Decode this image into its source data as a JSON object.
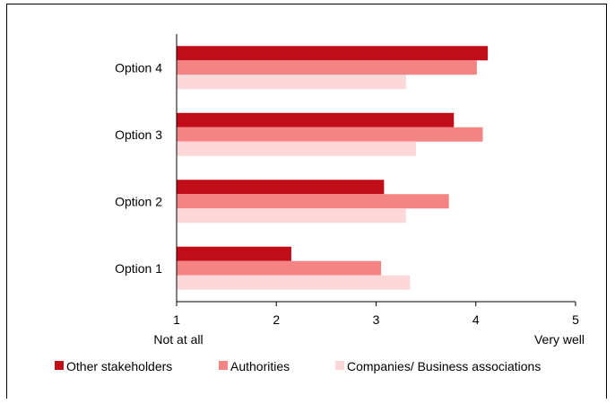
{
  "chart_data": {
    "type": "bar",
    "orientation": "horizontal",
    "categories": [
      "Option 1",
      "Option 2",
      "Option 3",
      "Option 4"
    ],
    "series": [
      {
        "name": "Other stakeholders",
        "color": "#c00d17",
        "values": [
          2.15,
          3.08,
          3.78,
          4.12
        ]
      },
      {
        "name": "Authorities",
        "color": "#f48484",
        "values": [
          3.05,
          3.73,
          4.07,
          4.01
        ]
      },
      {
        "name": "Companies/ Business associations",
        "color": "#fbd7d7",
        "values": [
          3.34,
          3.3,
          3.4,
          3.3
        ]
      }
    ],
    "xlim": [
      1,
      5
    ],
    "xticks": [
      1,
      2,
      3,
      4,
      5
    ],
    "x_anchor_labels": {
      "low": "Not at all",
      "high": "Very well"
    },
    "grid": false,
    "legend_position": "bottom"
  }
}
